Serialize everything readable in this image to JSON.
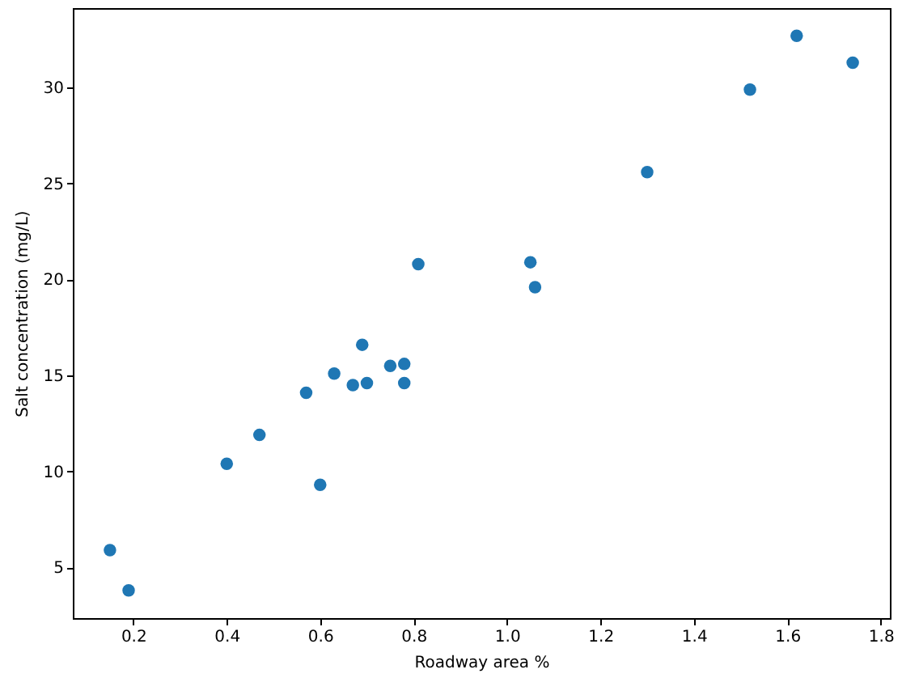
{
  "chart_data": {
    "type": "scatter",
    "xlabel": "Roadway area %",
    "ylabel": "Salt concentration (mg/L)",
    "xlim": [
      0.0705,
      1.8195
    ],
    "ylim": [
      2.355,
      34.145
    ],
    "xticks": [
      {
        "value": 0.2,
        "label": "0.2"
      },
      {
        "value": 0.4,
        "label": "0.4"
      },
      {
        "value": 0.6,
        "label": "0.6"
      },
      {
        "value": 0.8,
        "label": "0.8"
      },
      {
        "value": 1.0,
        "label": "1.0"
      },
      {
        "value": 1.2,
        "label": "1.2"
      },
      {
        "value": 1.4,
        "label": "1.4"
      },
      {
        "value": 1.6,
        "label": "1.6"
      },
      {
        "value": 1.8,
        "label": "1.8"
      }
    ],
    "yticks": [
      5,
      10,
      15,
      20,
      25,
      30
    ],
    "marker": "circle",
    "grid": false,
    "series": [
      {
        "color": "#1f77b4",
        "x": [
          0.19,
          0.15,
          0.57,
          0.4,
          0.7,
          0.67,
          0.63,
          0.47,
          0.75,
          0.6,
          0.78,
          0.81,
          0.78,
          0.69,
          1.3,
          1.05,
          1.52,
          1.06,
          1.74,
          1.62
        ],
        "values": [
          3.8,
          5.9,
          14.1,
          10.4,
          14.6,
          14.5,
          15.1,
          11.9,
          15.5,
          9.3,
          15.6,
          20.8,
          14.6,
          16.6,
          25.6,
          20.9,
          29.9,
          19.6,
          31.3,
          32.7
        ]
      }
    ]
  }
}
